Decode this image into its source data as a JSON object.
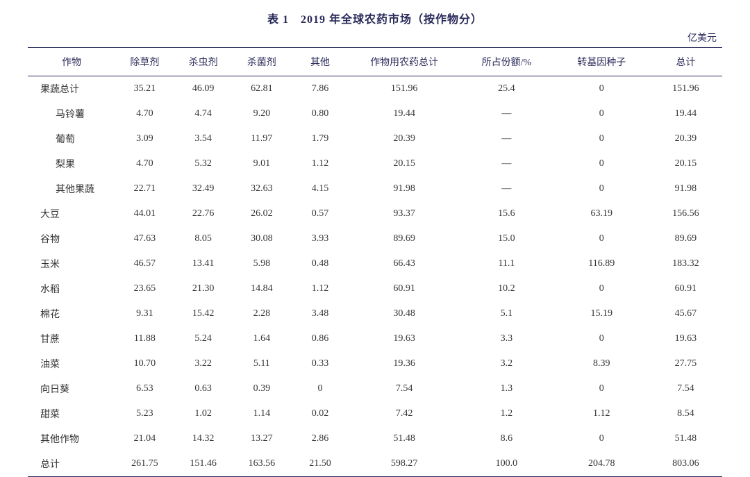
{
  "title": "表 1　2019 年全球农药市场（按作物分）",
  "unit": "亿美元",
  "columns": [
    "作物",
    "除草剂",
    "杀虫剂",
    "杀菌剂",
    "其他",
    "作物用农药总计",
    "所占份额/%",
    "转基因种子",
    "总计"
  ],
  "rows": [
    {
      "indent": false,
      "cells": [
        "果蔬总计",
        "35.21",
        "46.09",
        "62.81",
        "7.86",
        "151.96",
        "25.4",
        "0",
        "151.96"
      ]
    },
    {
      "indent": true,
      "cells": [
        "马铃薯",
        "4.70",
        "4.74",
        "9.20",
        "0.80",
        "19.44",
        "—",
        "0",
        "19.44"
      ]
    },
    {
      "indent": true,
      "cells": [
        "葡萄",
        "3.09",
        "3.54",
        "11.97",
        "1.79",
        "20.39",
        "—",
        "0",
        "20.39"
      ]
    },
    {
      "indent": true,
      "cells": [
        "梨果",
        "4.70",
        "5.32",
        "9.01",
        "1.12",
        "20.15",
        "—",
        "0",
        "20.15"
      ]
    },
    {
      "indent": true,
      "cells": [
        "其他果蔬",
        "22.71",
        "32.49",
        "32.63",
        "4.15",
        "91.98",
        "—",
        "0",
        "91.98"
      ]
    },
    {
      "indent": false,
      "cells": [
        "大豆",
        "44.01",
        "22.76",
        "26.02",
        "0.57",
        "93.37",
        "15.6",
        "63.19",
        "156.56"
      ]
    },
    {
      "indent": false,
      "cells": [
        "谷物",
        "47.63",
        "8.05",
        "30.08",
        "3.93",
        "89.69",
        "15.0",
        "0",
        "89.69"
      ]
    },
    {
      "indent": false,
      "cells": [
        "玉米",
        "46.57",
        "13.41",
        "5.98",
        "0.48",
        "66.43",
        "11.1",
        "116.89",
        "183.32"
      ]
    },
    {
      "indent": false,
      "cells": [
        "水稻",
        "23.65",
        "21.30",
        "14.84",
        "1.12",
        "60.91",
        "10.2",
        "0",
        "60.91"
      ]
    },
    {
      "indent": false,
      "cells": [
        "棉花",
        "9.31",
        "15.42",
        "2.28",
        "3.48",
        "30.48",
        "5.1",
        "15.19",
        "45.67"
      ]
    },
    {
      "indent": false,
      "cells": [
        "甘蔗",
        "11.88",
        "5.24",
        "1.64",
        "0.86",
        "19.63",
        "3.3",
        "0",
        "19.63"
      ]
    },
    {
      "indent": false,
      "cells": [
        "油菜",
        "10.70",
        "3.22",
        "5.11",
        "0.33",
        "19.36",
        "3.2",
        "8.39",
        "27.75"
      ]
    },
    {
      "indent": false,
      "cells": [
        "向日葵",
        "6.53",
        "0.63",
        "0.39",
        "0",
        "7.54",
        "1.3",
        "0",
        "7.54"
      ]
    },
    {
      "indent": false,
      "cells": [
        "甜菜",
        "5.23",
        "1.02",
        "1.14",
        "0.02",
        "7.42",
        "1.2",
        "1.12",
        "8.54"
      ]
    },
    {
      "indent": false,
      "cells": [
        "其他作物",
        "21.04",
        "14.32",
        "13.27",
        "2.86",
        "51.48",
        "8.6",
        "0",
        "51.48"
      ]
    },
    {
      "indent": false,
      "cells": [
        "总计",
        "261.75",
        "151.46",
        "163.56",
        "21.50",
        "598.27",
        "100.0",
        "204.78",
        "803.06"
      ]
    }
  ]
}
